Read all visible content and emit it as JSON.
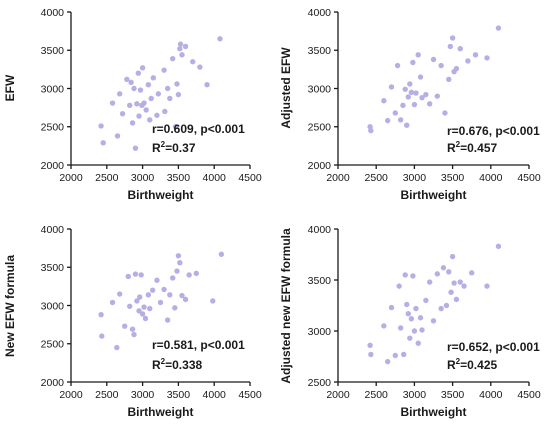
{
  "chart_data": [
    {
      "type": "scatter",
      "xlabel": "Birthweight",
      "ylabel": "EFW",
      "xlim": [
        2000,
        4500
      ],
      "ylim": [
        2000,
        4000
      ],
      "xticks": [
        2000,
        2500,
        3000,
        3500,
        4000,
        4500
      ],
      "yticks": [
        2000,
        2500,
        3000,
        3500,
        4000
      ],
      "annotation": {
        "line1": "r=0.609, p<0.001",
        "r2_prefix": "R",
        "r2_sup": "2",
        "r2_value": "=0.37"
      },
      "points": [
        [
          2420,
          2510
        ],
        [
          2450,
          2290
        ],
        [
          2580,
          2810
        ],
        [
          2650,
          2380
        ],
        [
          2680,
          2930
        ],
        [
          2720,
          2670
        ],
        [
          2780,
          3120
        ],
        [
          2820,
          2780
        ],
        [
          2840,
          3080
        ],
        [
          2860,
          2550
        ],
        [
          2880,
          3000
        ],
        [
          2900,
          2220
        ],
        [
          2920,
          2800
        ],
        [
          2940,
          3200
        ],
        [
          2950,
          2640
        ],
        [
          2970,
          2980
        ],
        [
          2990,
          2780
        ],
        [
          3000,
          3270
        ],
        [
          3020,
          2810
        ],
        [
          3050,
          2720
        ],
        [
          3080,
          3050
        ],
        [
          3100,
          2590
        ],
        [
          3120,
          2870
        ],
        [
          3150,
          3140
        ],
        [
          3200,
          2650
        ],
        [
          3220,
          2930
        ],
        [
          3300,
          3240
        ],
        [
          3310,
          2700
        ],
        [
          3350,
          3000
        ],
        [
          3380,
          2870
        ],
        [
          3420,
          3390
        ],
        [
          3460,
          2500
        ],
        [
          3480,
          3060
        ],
        [
          3500,
          2920
        ],
        [
          3520,
          3520
        ],
        [
          3530,
          3580
        ],
        [
          3550,
          3440
        ],
        [
          3600,
          3550
        ],
        [
          3700,
          3350
        ],
        [
          3800,
          3280
        ],
        [
          3900,
          3050
        ],
        [
          4080,
          3650
        ]
      ]
    },
    {
      "type": "scatter",
      "xlabel": "Birthweight",
      "ylabel": "Adjusted EFW",
      "xlim": [
        2000,
        4500
      ],
      "ylim": [
        2000,
        4000
      ],
      "xticks": [
        2000,
        2500,
        3000,
        3500,
        4000,
        4500
      ],
      "yticks": [
        2000,
        2500,
        3000,
        3500,
        4000
      ],
      "annotation": {
        "line1": "r=0.676, p<0.001",
        "r2_prefix": "R",
        "r2_sup": "2",
        "r2_value": "=0.457"
      },
      "points": [
        [
          2420,
          2500
        ],
        [
          2430,
          2450
        ],
        [
          2600,
          2840
        ],
        [
          2650,
          2580
        ],
        [
          2700,
          3020
        ],
        [
          2750,
          2680
        ],
        [
          2780,
          3300
        ],
        [
          2820,
          2590
        ],
        [
          2850,
          2780
        ],
        [
          2880,
          2990
        ],
        [
          2900,
          2520
        ],
        [
          2920,
          2890
        ],
        [
          2940,
          3060
        ],
        [
          2960,
          2950
        ],
        [
          2980,
          3340
        ],
        [
          3000,
          2790
        ],
        [
          3020,
          2940
        ],
        [
          3050,
          3440
        ],
        [
          3080,
          3150
        ],
        [
          3100,
          2880
        ],
        [
          3150,
          2920
        ],
        [
          3200,
          2800
        ],
        [
          3250,
          3380
        ],
        [
          3300,
          2900
        ],
        [
          3350,
          3300
        ],
        [
          3400,
          2680
        ],
        [
          3450,
          3120
        ],
        [
          3470,
          3550
        ],
        [
          3500,
          3660
        ],
        [
          3520,
          3220
        ],
        [
          3550,
          3260
        ],
        [
          3600,
          3520
        ],
        [
          3700,
          3360
        ],
        [
          3800,
          3440
        ],
        [
          3950,
          3400
        ],
        [
          4100,
          3790
        ]
      ]
    },
    {
      "type": "scatter",
      "xlabel": "Birthweight",
      "ylabel": "New EFW formula",
      "xlim": [
        2000,
        4500
      ],
      "ylim": [
        2000,
        4000
      ],
      "xticks": [
        2000,
        2500,
        3000,
        3500,
        4000,
        4500
      ],
      "yticks": [
        2000,
        2500,
        3000,
        3500,
        4000
      ],
      "annotation": {
        "line1": "r=0.581, p<0.001",
        "r2_prefix": "R",
        "r2_sup": "2",
        "r2_value": "=0.338"
      },
      "points": [
        [
          2420,
          2880
        ],
        [
          2430,
          2600
        ],
        [
          2580,
          3040
        ],
        [
          2640,
          2450
        ],
        [
          2680,
          3150
        ],
        [
          2750,
          2730
        ],
        [
          2800,
          3380
        ],
        [
          2820,
          2990
        ],
        [
          2860,
          2690
        ],
        [
          2880,
          2620
        ],
        [
          2900,
          3410
        ],
        [
          2920,
          3060
        ],
        [
          2950,
          2930
        ],
        [
          2960,
          3110
        ],
        [
          2980,
          3400
        ],
        [
          3000,
          2890
        ],
        [
          3020,
          2980
        ],
        [
          3040,
          2830
        ],
        [
          3080,
          3140
        ],
        [
          3100,
          2960
        ],
        [
          3140,
          3200
        ],
        [
          3200,
          3330
        ],
        [
          3250,
          3040
        ],
        [
          3300,
          3210
        ],
        [
          3350,
          2810
        ],
        [
          3380,
          3140
        ],
        [
          3420,
          3360
        ],
        [
          3450,
          2970
        ],
        [
          3480,
          3450
        ],
        [
          3500,
          3650
        ],
        [
          3520,
          3560
        ],
        [
          3550,
          3130
        ],
        [
          3600,
          3080
        ],
        [
          3650,
          3400
        ],
        [
          3750,
          3420
        ],
        [
          3980,
          3060
        ],
        [
          4100,
          3670
        ]
      ]
    },
    {
      "type": "scatter",
      "xlabel": "Birthweight",
      "ylabel": "Adjusted new EFW formula",
      "xlim": [
        2000,
        4500
      ],
      "ylim": [
        2500,
        4000
      ],
      "xticks": [
        2000,
        2500,
        3000,
        3500,
        4000,
        4500
      ],
      "yticks": [
        2500,
        3000,
        3500,
        4000
      ],
      "annotation": {
        "line1": "r=0.652, p<0.001",
        "r2_prefix": "R",
        "r2_sup": "2",
        "r2_value": "=0.425"
      },
      "points": [
        [
          2420,
          2860
        ],
        [
          2430,
          2770
        ],
        [
          2600,
          3050
        ],
        [
          2650,
          2700
        ],
        [
          2700,
          3230
        ],
        [
          2750,
          2760
        ],
        [
          2800,
          3440
        ],
        [
          2820,
          3030
        ],
        [
          2860,
          2770
        ],
        [
          2880,
          3550
        ],
        [
          2900,
          3260
        ],
        [
          2920,
          3170
        ],
        [
          2940,
          2930
        ],
        [
          2960,
          3120
        ],
        [
          2980,
          3540
        ],
        [
          3000,
          3000
        ],
        [
          3020,
          3220
        ],
        [
          3050,
          2880
        ],
        [
          3080,
          3130
        ],
        [
          3100,
          3010
        ],
        [
          3150,
          3300
        ],
        [
          3200,
          3480
        ],
        [
          3250,
          3100
        ],
        [
          3300,
          3560
        ],
        [
          3350,
          3220
        ],
        [
          3380,
          3620
        ],
        [
          3420,
          3250
        ],
        [
          3450,
          3580
        ],
        [
          3480,
          3380
        ],
        [
          3500,
          3730
        ],
        [
          3520,
          3470
        ],
        [
          3550,
          3310
        ],
        [
          3600,
          3480
        ],
        [
          3650,
          3440
        ],
        [
          3750,
          3570
        ],
        [
          3950,
          3440
        ],
        [
          4100,
          3830
        ]
      ]
    }
  ]
}
